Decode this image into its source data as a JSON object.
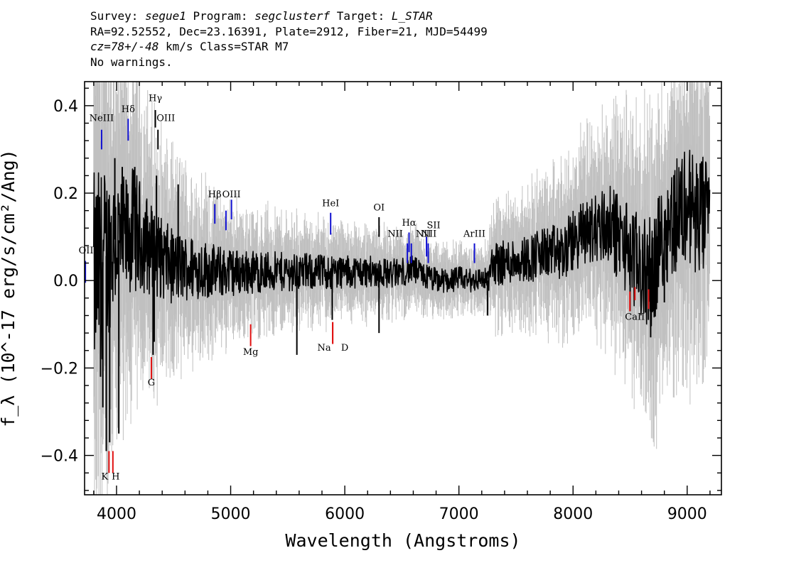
{
  "header": {
    "line1": {
      "survey_label": "Survey: ",
      "survey": "segue1",
      "program_label": " Program: ",
      "program": "segclusterf",
      "target_label": " Target: ",
      "target": "L_STAR"
    },
    "line2": "RA=92.52552, Dec=23.16391, Plate=2912, Fiber=21, MJD=54499",
    "line3": {
      "cz": "cz=78+/-48",
      "rest": " km/s Class=STAR M7"
    },
    "line4": "No warnings."
  },
  "colors": {
    "flux": "#000000",
    "error": "#c0c0c0",
    "emission": "#1010d0",
    "absorption": "#e01010",
    "nebular": "#000000"
  },
  "chart_data": {
    "type": "line",
    "xlabel": "Wavelength (Angstroms)",
    "ylabel": "f_λ (10^-17 erg/s/cm²/Ang)",
    "xlim": [
      3720,
      9300
    ],
    "ylim": [
      -0.49,
      0.455
    ],
    "x_ticks": [
      4000,
      5000,
      6000,
      7000,
      8000,
      9000
    ],
    "x_tick_labels": [
      "4000",
      "5000",
      "6000",
      "7000",
      "8000",
      "9000"
    ],
    "y_ticks": [
      -0.4,
      -0.2,
      0.0,
      0.2,
      0.4
    ],
    "y_tick_labels": [
      "−0.4",
      "−0.2",
      "0.0",
      "0.2",
      "0.4"
    ],
    "grid": false,
    "series": [
      {
        "role": "flux",
        "x": [
          3800,
          3850,
          3900,
          3950,
          4000,
          4050,
          4100,
          4150,
          4200,
          4250,
          4300,
          4350,
          4400,
          4500,
          4600,
          4700,
          4800,
          4900,
          5000,
          5100,
          5200,
          5300,
          5400,
          5500,
          5600,
          5700,
          5800,
          5900,
          6000,
          6100,
          6200,
          6300,
          6400,
          6500,
          6600,
          6700,
          6800,
          6900,
          7000,
          7100,
          7200,
          7250,
          7300,
          7400,
          7500,
          7600,
          7700,
          7800,
          7900,
          8000,
          8100,
          8200,
          8300,
          8400,
          8500,
          8600,
          8700,
          8800,
          8900,
          9000,
          9100,
          9200
        ],
        "y": [
          0.0,
          0.03,
          0.05,
          0.08,
          0.1,
          0.08,
          0.1,
          0.12,
          0.1,
          0.09,
          0.07,
          0.06,
          0.05,
          0.03,
          0.03,
          0.03,
          0.025,
          0.02,
          0.02,
          0.02,
          0.02,
          0.02,
          0.02,
          0.02,
          0.02,
          0.02,
          0.02,
          0.02,
          0.02,
          0.02,
          0.02,
          0.02,
          0.015,
          0.02,
          0.025,
          0.01,
          0.0,
          0.0,
          0.005,
          0.0,
          0.005,
          0.0,
          0.04,
          0.04,
          0.05,
          0.05,
          0.06,
          0.065,
          0.06,
          0.09,
          0.11,
          0.12,
          0.13,
          0.1,
          0.07,
          0.02,
          0.02,
          0.12,
          0.15,
          0.18,
          0.14,
          0.15
        ]
      },
      {
        "role": "error",
        "x": [
          3800,
          3850,
          3900,
          3950,
          4000,
          4100,
          4200,
          4300,
          4400,
          4600,
          4800,
          5000,
          5200,
          5500,
          6000,
          6500,
          7000,
          7250,
          7300,
          7600,
          8000,
          8200,
          8500,
          8700,
          9000,
          9200
        ],
        "y": [
          0.45,
          0.42,
          0.38,
          0.33,
          0.3,
          0.27,
          0.24,
          0.2,
          0.17,
          0.14,
          0.12,
          0.1,
          0.09,
          0.08,
          0.07,
          0.06,
          0.05,
          0.05,
          0.09,
          0.1,
          0.13,
          0.15,
          0.2,
          0.23,
          0.25,
          0.26
        ]
      }
    ],
    "spikes": [
      {
        "x": 3860,
        "y": -0.22
      },
      {
        "x": 3880,
        "y": -0.29
      },
      {
        "x": 3910,
        "y": -0.39
      },
      {
        "x": 3940,
        "y": -0.37
      },
      {
        "x": 4020,
        "y": -0.35
      },
      {
        "x": 4320,
        "y": -0.17
      },
      {
        "x": 4330,
        "y": -0.14
      },
      {
        "x": 5580,
        "y": -0.17
      },
      {
        "x": 5890,
        "y": -0.09
      },
      {
        "x": 6300,
        "y": -0.12
      },
      {
        "x": 7250,
        "y": -0.08
      },
      {
        "x": 8500,
        "y": -0.07
      },
      {
        "x": 8660,
        "y": -0.09
      },
      {
        "x": 8680,
        "y": -0.13
      },
      {
        "x": 8800,
        "y": -0.05
      },
      {
        "x": 3985,
        "y": 0.28
      },
      {
        "x": 4050,
        "y": 0.26
      },
      {
        "x": 4160,
        "y": 0.26
      },
      {
        "x": 4350,
        "y": 0.24
      },
      {
        "x": 4540,
        "y": 0.22
      },
      {
        "x": 8950,
        "y": 0.23
      },
      {
        "x": 9050,
        "y": 0.19
      },
      {
        "x": 9150,
        "y": 0.22
      }
    ],
    "line_labels": [
      {
        "text": "OII",
        "x": 3727,
        "type": "emission",
        "label_y": 0.062,
        "bar_y": [
          0.045,
          -0.005
        ]
      },
      {
        "text": "NeIII",
        "x": 3869,
        "type": "emission",
        "label_y": 0.365,
        "bar_y": [
          0.345,
          0.3
        ]
      },
      {
        "text": "Hδ",
        "x": 4102,
        "type": "emission",
        "label_y": 0.385,
        "bar_y": [
          0.37,
          0.32
        ]
      },
      {
        "text": "Hγ",
        "x": 4340,
        "type": "nebular",
        "label_y": 0.41,
        "bar_y": [
          0.39,
          0.35
        ]
      },
      {
        "text": "OIII",
        "x": 4363,
        "type": "nebular",
        "label_y": 0.365,
        "bar_y": [
          0.345,
          0.3
        ]
      },
      {
        "text": "Hβ",
        "x": 4861,
        "type": "emission",
        "label_y": 0.19,
        "bar_y": [
          0.175,
          0.13
        ]
      },
      {
        "text": "OIII",
        "x": 4959,
        "type": "emission",
        "label_y": 0.19,
        "bar_y": [
          0.16,
          0.115
        ]
      },
      {
        "text": "OIII",
        "x": 5007,
        "type": "emission",
        "label_y": 0.19,
        "bar_y": [
          0.185,
          0.14
        ]
      },
      {
        "text": "HeI",
        "x": 5876,
        "type": "emission",
        "label_y": 0.17,
        "bar_y": [
          0.155,
          0.105
        ]
      },
      {
        "text": "OI",
        "x": 6300,
        "type": "nebular",
        "label_y": 0.16,
        "bar_y": [
          0.145,
          0.1
        ]
      },
      {
        "text": "NII",
        "x": 6548,
        "type": "emission",
        "label_y": 0.1,
        "bar_y": [
          0.085,
          0.04
        ]
      },
      {
        "text": "Hα",
        "x": 6563,
        "type": "emission",
        "label_y": 0.125,
        "bar_y": [
          0.11,
          0.065
        ]
      },
      {
        "text": "NII",
        "x": 6583,
        "type": "emission",
        "label_y": 0.1,
        "bar_y": [
          0.085,
          0.04
        ]
      },
      {
        "text": "SII",
        "x": 6716,
        "type": "emission",
        "label_y": 0.12,
        "bar_y": [
          0.1,
          0.055
        ]
      },
      {
        "text": "SII",
        "x": 6731,
        "type": "emission",
        "label_y": 0.1,
        "bar_y": [
          0.085,
          0.04
        ]
      },
      {
        "text": "ArIII",
        "x": 7136,
        "type": "emission",
        "label_y": 0.1,
        "bar_y": [
          0.085,
          0.04
        ]
      },
      {
        "text": "K",
        "x": 3934,
        "type": "absorption",
        "label_y": -0.455,
        "bar_y": [
          -0.39,
          -0.44
        ]
      },
      {
        "text": "H",
        "x": 3968,
        "type": "absorption",
        "label_y": -0.455,
        "bar_y": [
          -0.39,
          -0.44
        ]
      },
      {
        "text": "G",
        "x": 4305,
        "type": "absorption",
        "label_y": -0.24,
        "bar_y": [
          -0.175,
          -0.225
        ]
      },
      {
        "text": "Mg",
        "x": 5175,
        "type": "absorption",
        "label_y": -0.17,
        "bar_y": [
          -0.1,
          -0.15
        ]
      },
      {
        "text": "Na",
        "x": 5894,
        "type": "absorption",
        "label_y": -0.16,
        "bar_y": [
          -0.095,
          -0.145
        ]
      },
      {
        "text": "D",
        "x": 5894,
        "type": "absorption",
        "label_y": -0.16,
        "bar_y": [
          -0.095,
          -0.145
        ]
      },
      {
        "text": "CaII",
        "x": 8498,
        "type": "absorption",
        "label_y": -0.09,
        "bar_y": [
          -0.025,
          -0.07
        ]
      },
      {
        "text": "CaII",
        "x": 8542,
        "type": "absorption",
        "label_y": -0.09,
        "bar_y": [
          -0.015,
          -0.045
        ]
      },
      {
        "text": "CaII",
        "x": 8662,
        "type": "absorption",
        "label_y": -0.09,
        "bar_y": [
          -0.02,
          -0.065
        ]
      }
    ]
  }
}
